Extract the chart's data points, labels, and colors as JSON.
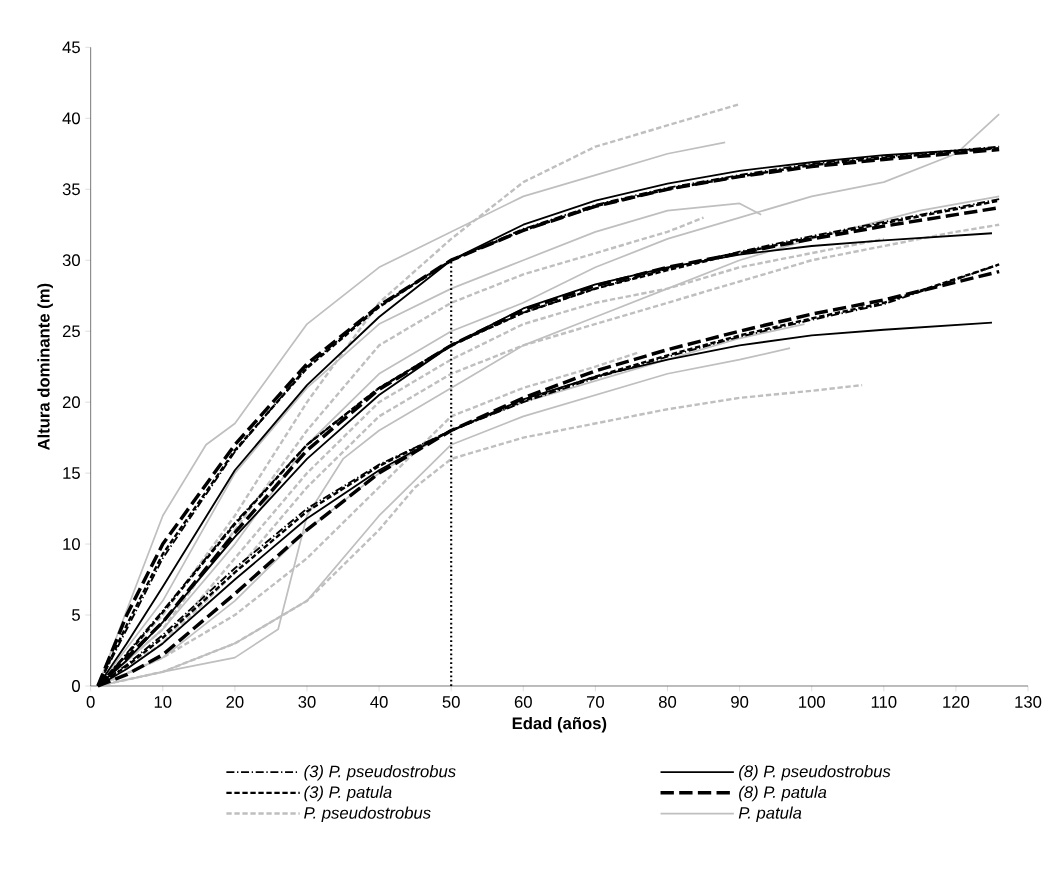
{
  "chart_data": {
    "type": "line",
    "xlabel": "Edad (años)",
    "ylabel": "Altura dominante (m)",
    "xlim": [
      0,
      130
    ],
    "xticks": [
      0,
      10,
      20,
      30,
      40,
      50,
      60,
      70,
      80,
      90,
      100,
      110,
      120,
      130
    ],
    "ylim": [
      0,
      45
    ],
    "yticks": [
      0,
      5,
      10,
      15,
      20,
      25,
      30,
      35,
      40,
      45
    ],
    "grid": false,
    "legend": "bottom",
    "series": [
      {
        "name": "(3) P. pseudostrobus",
        "color": "#000000",
        "line_style": "dashdot",
        "x": [
          1,
          5,
          10,
          20,
          30,
          40,
          50,
          60,
          70,
          80,
          90,
          100,
          110,
          126
        ],
        "values": [
          0,
          4,
          9,
          16.5,
          22.5,
          26.8,
          30,
          32.2,
          33.9,
          35.1,
          36,
          36.8,
          37.3,
          38
        ]
      },
      {
        "name": "(8) P. pseudostrobus",
        "color": "#000000",
        "line_style": "solid",
        "x": [
          1,
          5,
          10,
          20,
          30,
          40,
          50,
          60,
          70,
          80,
          90,
          100,
          110,
          125
        ],
        "values": [
          0,
          3,
          7,
          15.2,
          21.2,
          26,
          30,
          32.5,
          34.2,
          35.4,
          36.3,
          36.9,
          37.4,
          37.9
        ]
      },
      {
        "name": "(3) P. patula",
        "color": "#000000",
        "line_style": "dashed",
        "x": [
          1,
          5,
          10,
          20,
          30,
          40,
          50,
          60,
          70,
          80,
          90,
          100,
          110,
          126
        ],
        "values": [
          0,
          4.3,
          9.3,
          16.6,
          22.4,
          26.7,
          30,
          32.1,
          33.8,
          35,
          35.9,
          36.7,
          37.2,
          37.9
        ]
      },
      {
        "name": "(8) P. patula",
        "color": "#000000",
        "line_style": "longdashed",
        "x": [
          1,
          5,
          10,
          20,
          30,
          40,
          50,
          60,
          70,
          80,
          90,
          100,
          110,
          126
        ],
        "values": [
          0,
          5,
          10,
          17,
          22.7,
          26.8,
          30,
          32.1,
          33.8,
          35,
          35.9,
          36.6,
          37.1,
          37.8
        ]
      },
      {
        "color": "#000000",
        "line_style": "dashdot",
        "x": [
          1,
          5,
          10,
          20,
          30,
          40,
          50,
          60,
          70,
          80,
          90,
          100,
          110,
          126
        ],
        "values": [
          0,
          2.3,
          5.3,
          11.5,
          17,
          21,
          24,
          26.3,
          28,
          29.4,
          30.6,
          31.7,
          32.7,
          34.3
        ]
      },
      {
        "color": "#000000",
        "line_style": "dashdot",
        "x": [
          1,
          5,
          10,
          20,
          30,
          40,
          50,
          60,
          70,
          80,
          90,
          100,
          110,
          126
        ],
        "values": [
          0,
          1.5,
          3.6,
          8.3,
          12.5,
          15.6,
          18,
          20,
          21.7,
          23.2,
          24.6,
          25.8,
          26.9,
          29.7
        ]
      },
      {
        "color": "#000000",
        "line_style": "solid",
        "x": [
          1,
          5,
          10,
          20,
          30,
          40,
          50,
          60,
          70,
          80,
          90,
          100,
          110,
          125
        ],
        "values": [
          0,
          1.8,
          4.5,
          10.5,
          16,
          20.5,
          24,
          26.6,
          28.3,
          29.5,
          30.4,
          31,
          31.4,
          31.9
        ]
      },
      {
        "color": "#000000",
        "line_style": "solid",
        "x": [
          1,
          5,
          10,
          20,
          30,
          40,
          50,
          60,
          70,
          80,
          90,
          100,
          110,
          125
        ],
        "values": [
          0,
          1.2,
          3,
          7.5,
          11.8,
          15.2,
          18,
          20.2,
          21.8,
          23,
          24,
          24.7,
          25.1,
          25.6
        ]
      },
      {
        "color": "#000000",
        "line_style": "dashed",
        "x": [
          1,
          5,
          10,
          20,
          30,
          40,
          50,
          60,
          70,
          80,
          90,
          100,
          110,
          126
        ],
        "values": [
          0,
          2.2,
          5.2,
          11.4,
          17,
          21,
          24,
          26.3,
          28,
          29.3,
          30.5,
          31.6,
          32.6,
          34.2
        ]
      },
      {
        "color": "#000000",
        "line_style": "dashed",
        "x": [
          1,
          5,
          10,
          20,
          30,
          40,
          50,
          60,
          70,
          80,
          90,
          100,
          110,
          126
        ],
        "values": [
          0,
          1.4,
          3.4,
          8,
          12.3,
          15.5,
          18,
          20.1,
          21.8,
          23.3,
          24.7,
          25.9,
          27,
          29.7
        ]
      },
      {
        "color": "#000000",
        "line_style": "longdashed",
        "x": [
          1,
          5,
          10,
          20,
          30,
          40,
          50,
          60,
          70,
          80,
          90,
          100,
          110,
          126
        ],
        "values": [
          0,
          2,
          4.5,
          10.8,
          16.6,
          20.9,
          24,
          26.5,
          28.2,
          29.5,
          30.5,
          31.5,
          32.4,
          33.7
        ]
      },
      {
        "color": "#000000",
        "line_style": "longdashed",
        "x": [
          1,
          5,
          10,
          20,
          30,
          40,
          50,
          60,
          70,
          80,
          90,
          100,
          110,
          126
        ],
        "values": [
          0,
          0.8,
          2.2,
          6.5,
          11,
          15,
          18,
          20.3,
          22.2,
          23.7,
          25,
          26.2,
          27.2,
          29.2
        ]
      },
      {
        "color": "#000000",
        "line_style": "dotted",
        "x": [
          50,
          50
        ],
        "values": [
          0,
          30
        ]
      },
      {
        "name": "P. pseudostrobus",
        "color": "#bfbfbf",
        "line_style": "dashed",
        "x": [
          1,
          10,
          20,
          30,
          40,
          50,
          55,
          60,
          70,
          80,
          90
        ],
        "values": [
          0,
          5,
          12,
          20,
          27,
          31.5,
          33.5,
          35.5,
          38,
          39.5,
          41
        ]
      },
      {
        "name": "P. patula",
        "color": "#bfbfbf",
        "line_style": "solid",
        "x": [
          1,
          10,
          16,
          20,
          25,
          30,
          40,
          50,
          60,
          70,
          80,
          88
        ],
        "values": [
          0,
          12,
          17,
          18.5,
          22,
          25.5,
          29.5,
          32,
          34.5,
          36,
          37.5,
          38.3
        ]
      },
      {
        "color": "#bfbfbf",
        "line_style": "dashed",
        "x": [
          1,
          10,
          20,
          30,
          40,
          50,
          60,
          70,
          80,
          90,
          100,
          110,
          120,
          126
        ],
        "values": [
          0,
          3,
          8,
          14,
          19,
          22,
          24,
          25.5,
          27,
          28.5,
          30,
          31,
          32,
          32.5
        ]
      },
      {
        "color": "#bfbfbf",
        "line_style": "dashed",
        "x": [
          1,
          10,
          20,
          30,
          40,
          45,
          50,
          60,
          70,
          80,
          90,
          100,
          107
        ],
        "values": [
          0,
          1,
          3,
          6,
          11,
          14,
          16,
          17.5,
          18.5,
          19.5,
          20.3,
          20.8,
          21.2
        ]
      },
      {
        "color": "#bfbfbf",
        "line_style": "dashed",
        "x": [
          1,
          10,
          20,
          30,
          38,
          45,
          50,
          60,
          70,
          76
        ],
        "values": [
          0,
          2,
          5,
          9,
          13,
          16.5,
          19,
          21,
          22.5,
          23.5
        ]
      },
      {
        "color": "#bfbfbf",
        "line_style": "dashed",
        "x": [
          1,
          10,
          20,
          30,
          40,
          50,
          60,
          70,
          80,
          85
        ],
        "values": [
          0,
          4,
          11,
          18,
          24,
          27,
          29,
          30.5,
          32,
          33
        ]
      },
      {
        "color": "#bfbfbf",
        "line_style": "dashed",
        "x": [
          1,
          10,
          20,
          30,
          40,
          50,
          60,
          70,
          80,
          90,
          100,
          110
        ],
        "values": [
          0,
          3,
          9,
          15,
          20,
          23,
          25.5,
          27,
          28,
          29.5,
          30.5,
          31.5
        ]
      },
      {
        "color": "#bfbfbf",
        "line_style": "solid",
        "x": [
          1,
          10,
          20,
          30,
          40,
          50,
          60,
          70,
          80,
          90,
          100,
          110,
          120,
          126
        ],
        "values": [
          0,
          4,
          10,
          17,
          22,
          25,
          27,
          29.5,
          31.5,
          33,
          34.5,
          35.5,
          37.5,
          40.3
        ]
      },
      {
        "color": "#bfbfbf",
        "line_style": "solid",
        "x": [
          1,
          10,
          20,
          26,
          28,
          30,
          35,
          40,
          50,
          60,
          70,
          80,
          90,
          100,
          115,
          126
        ],
        "values": [
          0,
          1,
          2,
          4,
          8,
          12,
          16,
          18,
          21,
          24,
          26,
          28,
          30,
          31.5,
          33.5,
          34.5
        ]
      },
      {
        "color": "#bfbfbf",
        "line_style": "solid",
        "x": [
          1,
          10,
          20,
          30,
          40,
          50,
          60,
          70,
          80,
          90,
          97
        ],
        "values": [
          0,
          1,
          3,
          6,
          12,
          17,
          19,
          20.5,
          22,
          23,
          23.8
        ]
      },
      {
        "color": "#bfbfbf",
        "line_style": "solid",
        "x": [
          1,
          10,
          20,
          30,
          40,
          50,
          60,
          70,
          80,
          90,
          99
        ],
        "values": [
          0,
          2,
          6,
          11,
          15,
          18,
          20,
          21.5,
          23,
          24.5,
          25.5
        ]
      },
      {
        "color": "#bfbfbf",
        "line_style": "solid",
        "x": [
          1,
          10,
          20,
          30,
          40,
          50,
          60,
          70,
          80,
          90,
          93
        ],
        "values": [
          0,
          6,
          15,
          21,
          25.5,
          28,
          30,
          32,
          33.5,
          34,
          33.2
        ]
      }
    ]
  }
}
